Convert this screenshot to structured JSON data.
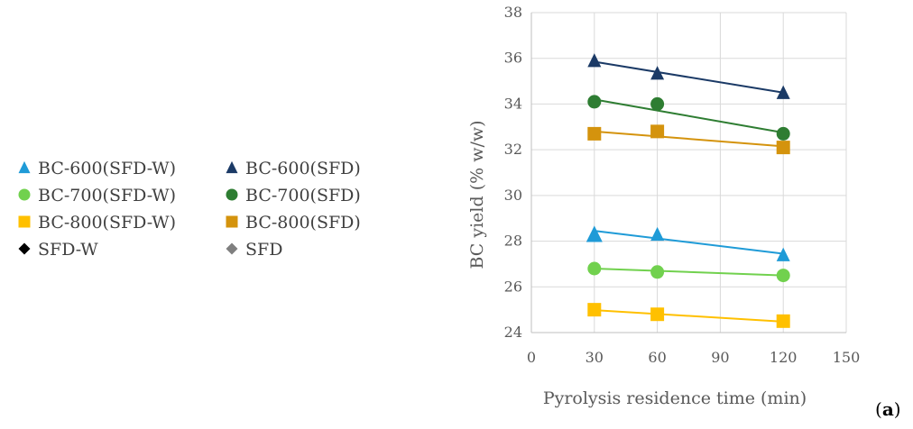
{
  "chart_data": {
    "type": "scatter",
    "panel_label": {
      "open": "(",
      "letter": "a",
      "close": ")"
    },
    "xlabel": "Pyrolysis residence time (min)",
    "ylabel": "BC yield (% w/w)",
    "xlim": [
      0,
      150
    ],
    "ylim": [
      24,
      38
    ],
    "xticks": [
      0,
      30,
      60,
      90,
      120,
      150
    ],
    "yticks": [
      24,
      26,
      28,
      30,
      32,
      34,
      36,
      38
    ],
    "grid": "vertical and horizontal",
    "legend_position": "left",
    "series": [
      {
        "name": "BC-600(SFD-W)",
        "marker": "triangle",
        "color": "#1F9BD7",
        "x": [
          30,
          60,
          120
        ],
        "y": [
          28.3,
          28.3,
          27.4
        ],
        "trend": [
          28.45,
          27.45
        ]
      },
      {
        "name": "BC-600(SFD)",
        "marker": "triangle",
        "color": "#1B3A66",
        "x": [
          30,
          60,
          120
        ],
        "y": [
          35.9,
          35.35,
          34.5
        ],
        "trend": [
          35.85,
          34.5
        ]
      },
      {
        "name": "BC-700(SFD-W)",
        "marker": "circle",
        "color": "#71D14E",
        "x": [
          30,
          60,
          120
        ],
        "y": [
          26.8,
          26.65,
          26.5
        ],
        "trend": [
          26.8,
          26.5
        ]
      },
      {
        "name": "BC-700(SFD)",
        "marker": "circle",
        "color": "#2E7D32",
        "x": [
          30,
          60,
          120
        ],
        "y": [
          34.1,
          34.0,
          32.7
        ],
        "trend": [
          34.2,
          32.75
        ]
      },
      {
        "name": "BC-800(SFD-W)",
        "marker": "square",
        "color": "#FFC000",
        "x": [
          30,
          60,
          120
        ],
        "y": [
          25.0,
          24.8,
          24.5
        ],
        "trend": [
          24.98,
          24.48
        ]
      },
      {
        "name": "BC-800(SFD)",
        "marker": "square",
        "color": "#D4930D",
        "x": [
          30,
          60,
          120
        ],
        "y": [
          32.7,
          32.8,
          32.1
        ],
        "trend": [
          32.8,
          32.15
        ]
      },
      {
        "name": "SFD-W",
        "marker": "diamond",
        "color": "#000000",
        "x": [],
        "y": []
      },
      {
        "name": "SFD",
        "marker": "diamond",
        "color": "#7F7F7F",
        "x": [],
        "y": []
      }
    ]
  }
}
